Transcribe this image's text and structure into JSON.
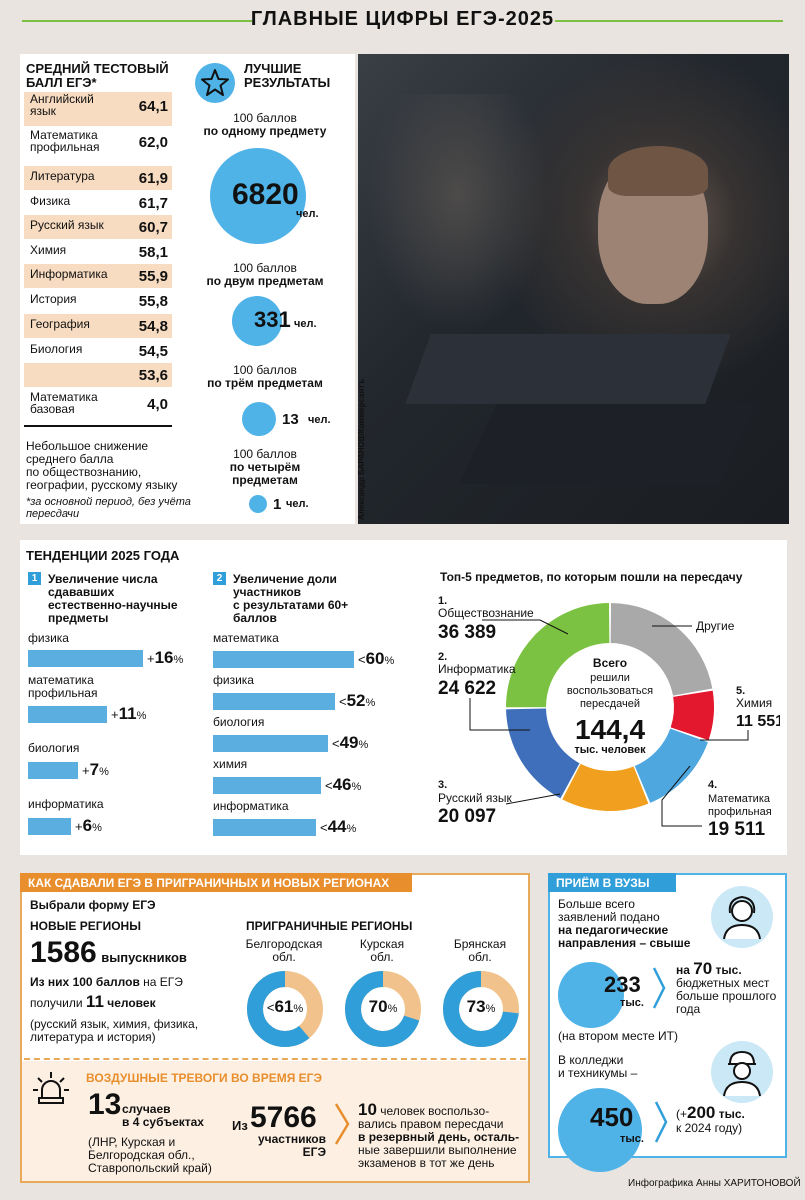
{
  "header": {
    "title": "ГЛАВНЫЕ ЦИФРЫ ЕГЭ-2025"
  },
  "avg_score": {
    "title_line1": "СРЕДНИЙ ТЕСТОВЫЙ",
    "title_line2": "БАЛЛ ЕГЭ*",
    "rows": [
      {
        "line1": "Английский",
        "line2": "язык",
        "value": "64,1"
      },
      {
        "line1": "Математика",
        "line2": "профильная",
        "value": "62,0"
      },
      {
        "line1": "Литература",
        "line2": "",
        "value": "61,9"
      },
      {
        "line1": "Физика",
        "line2": "",
        "value": "61,7"
      },
      {
        "line1": "Русский язык",
        "line2": "",
        "value": "60,7"
      },
      {
        "line1": "Химия",
        "line2": "",
        "value": "58,1"
      },
      {
        "line1": "Информатика",
        "line2": "",
        "value": "55,9"
      },
      {
        "line1": "История",
        "line2": "",
        "value": "55,8"
      },
      {
        "line1": "География",
        "line2": "",
        "value": "54,8"
      },
      {
        "line1": "Биология",
        "line2": "",
        "value": "54,5"
      },
      {
        "line1": "",
        "line2": "",
        "value": "53,6"
      },
      {
        "line1": "Математика",
        "line2": "базовая",
        "value": "4,0"
      }
    ],
    "note_lines": [
      "Небольшое снижение",
      "среднего балла",
      "по обществознанию,",
      "географии, русскому языку"
    ],
    "footnote_lines": [
      "*за основной период, без учёта",
      "пересдачи"
    ]
  },
  "best": {
    "title_line1": "ЛУЧШИЕ",
    "title_line2": "РЕЗУЛЬТАТЫ",
    "icon": "star-icon",
    "items": [
      {
        "line1": "100 баллов",
        "line2": "по одному предмету",
        "value": "6820",
        "unit": "чел.",
        "count": 6820
      },
      {
        "line1": "100 баллов",
        "line2": "по двум предметам",
        "value": "331",
        "unit": "чел.",
        "count": 331
      },
      {
        "line1": "100 баллов",
        "line2": "по трём предметам",
        "value": "13",
        "unit": "чел.",
        "count": 13
      },
      {
        "line1": "100 баллов",
        "line2": "по четырём",
        "line3": "предметам",
        "value": "1",
        "unit": "чел.",
        "count": 1
      }
    ]
  },
  "photo_credit": "Александр БАРАНОВ/Коммерсантъ",
  "trends": {
    "title": "ТЕНДЕНЦИИ 2025 ГОДА",
    "col1": {
      "num": "1",
      "lines": [
        "Увеличение числа",
        "сдававших",
        "естественно-научные",
        "предметы"
      ],
      "items": [
        {
          "label": "физика",
          "label2": "",
          "sign": "+",
          "value": "16",
          "unit": "%",
          "pct": 16
        },
        {
          "label": "математика",
          "label2": "профильная",
          "sign": "+",
          "value": "11",
          "unit": "%",
          "pct": 11
        },
        {
          "label": "биология",
          "label2": "",
          "sign": "+",
          "value": "7",
          "unit": "%",
          "pct": 7
        },
        {
          "label": "информатика",
          "label2": "",
          "sign": "+",
          "value": "6",
          "unit": "%",
          "pct": 6
        }
      ]
    },
    "col2": {
      "num": "2",
      "lines": [
        "Увеличение доли",
        "участников",
        "с результатами 60+",
        "баллов"
      ],
      "items": [
        {
          "label": "математика",
          "sign": "<",
          "value": "60",
          "unit": "%",
          "pct": 60
        },
        {
          "label": "физика",
          "sign": "<",
          "value": "52",
          "unit": "%",
          "pct": 52
        },
        {
          "label": "биология",
          "sign": "<",
          "value": "49",
          "unit": "%",
          "pct": 49
        },
        {
          "label": "химия",
          "sign": "<",
          "value": "46",
          "unit": "%",
          "pct": 46
        },
        {
          "label": "информатика",
          "sign": "<",
          "value": "44",
          "unit": "%",
          "pct": 44
        }
      ]
    }
  },
  "chart_data": {
    "type": "pie",
    "title": "Топ-5 предметов, по которым пошли на пересдачу",
    "center_lines": [
      "Всего",
      "решили",
      "воспользоваться",
      "пересдачей"
    ],
    "center_value": "144,4",
    "center_unit": "тыс. человек",
    "total": 144400,
    "slices": [
      {
        "rank": "1.",
        "name": "Обществознание",
        "name2": "",
        "value_text": "36 389",
        "value": 36389,
        "color": "#7cc242"
      },
      {
        "rank": "2.",
        "name": "Информатика",
        "name2": "",
        "value_text": "24 622",
        "value": 24622,
        "color": "#3f6fba"
      },
      {
        "rank": "3.",
        "name": "Русский язык",
        "name2": "",
        "value_text": "20 097",
        "value": 20097,
        "color": "#f0a01e"
      },
      {
        "rank": "4.",
        "name": "Математика",
        "name2": "профильная",
        "value_text": "19 511",
        "value": 19511,
        "color": "#4fa7df"
      },
      {
        "rank": "5.",
        "name": "Химия",
        "name2": "",
        "value_text": "11 551",
        "value": 11551,
        "color": "#e3172d"
      },
      {
        "rank": "",
        "name": "Другие",
        "name2": "",
        "value_text": "",
        "value": 32230,
        "color": "#a9a9a9"
      }
    ]
  },
  "regions": {
    "title": "КАК СДАВАЛИ ЕГЭ В ПРИГРАНИЧНЫХ И НОВЫХ РЕГИОНАХ",
    "chose": "Выбрали форму ЕГЭ",
    "new_title": "НОВЫЕ РЕГИОНЫ",
    "grads_value": "1586",
    "grads_unit": "выпускников",
    "of_them_a": "Из них",
    "of_them_b": "100 баллов",
    "of_them_c": "на ЕГЭ",
    "got_a": "получили",
    "got_value": "11",
    "got_unit": "человек",
    "subjects_lines": [
      "(русский язык, химия, физика,",
      "литература и история)"
    ],
    "border_title": "ПРИГРАНИЧНЫЕ РЕГИОНЫ",
    "border": [
      {
        "name": "Белгородская",
        "name2": "обл.",
        "sign": "<",
        "value": "61",
        "unit": "%",
        "pct": 61
      },
      {
        "name": "Курская",
        "name2": "обл.",
        "sign": "",
        "value": "70",
        "unit": "%",
        "pct": 70
      },
      {
        "name": "Брянская",
        "name2": "обл.",
        "sign": "",
        "value": "73",
        "unit": "%",
        "pct": 73
      }
    ],
    "alarm": {
      "title": "ВОЗДУШНЫЕ ТРЕВОГИ ВО ВРЕМЯ ЕГЭ",
      "cases_value": "13",
      "cases_unit": "случаев",
      "cases_sub": "в 4 субъектах",
      "places_lines": [
        "(ЛНР, Курская и",
        "Белгородская обл.,",
        "Ставропольский край)"
      ],
      "in_label": "Из",
      "participants_value": "5766",
      "participants_lines": [
        "участников",
        "ЕГЭ"
      ],
      "retake_value": "10",
      "retake_lines": [
        "человек воспользо-",
        "вались правом пересдачи",
        "в резервный день, осталь-",
        "ные завершили выполнение",
        "экзаменов в тот же день"
      ]
    }
  },
  "universities": {
    "title": "ПРИЁМ В ВУЗЫ",
    "intro_lines": [
      "Больше всего",
      "заявлений подано",
      "на педагогические",
      "направления – свыше"
    ],
    "apps_value": "233",
    "apps_unit": "тыс.",
    "budget_prefix": "на",
    "budget_value": "70",
    "budget_lines": [
      "тыс.",
      "бюджетных мест",
      "больше прошлого",
      "года"
    ],
    "second": "(на втором месте ИТ)",
    "colleges_lines": [
      "В колледжи",
      "и техникумы –"
    ],
    "colleges_value": "450",
    "colleges_unit": "тыс.",
    "growth_prefix": "(+",
    "growth_value": "200",
    "growth_unit": "тыс.",
    "growth_suffix": "к 2024 году)"
  },
  "credit": "Инфографика Анны ХАРИТОНОВОЙ"
}
